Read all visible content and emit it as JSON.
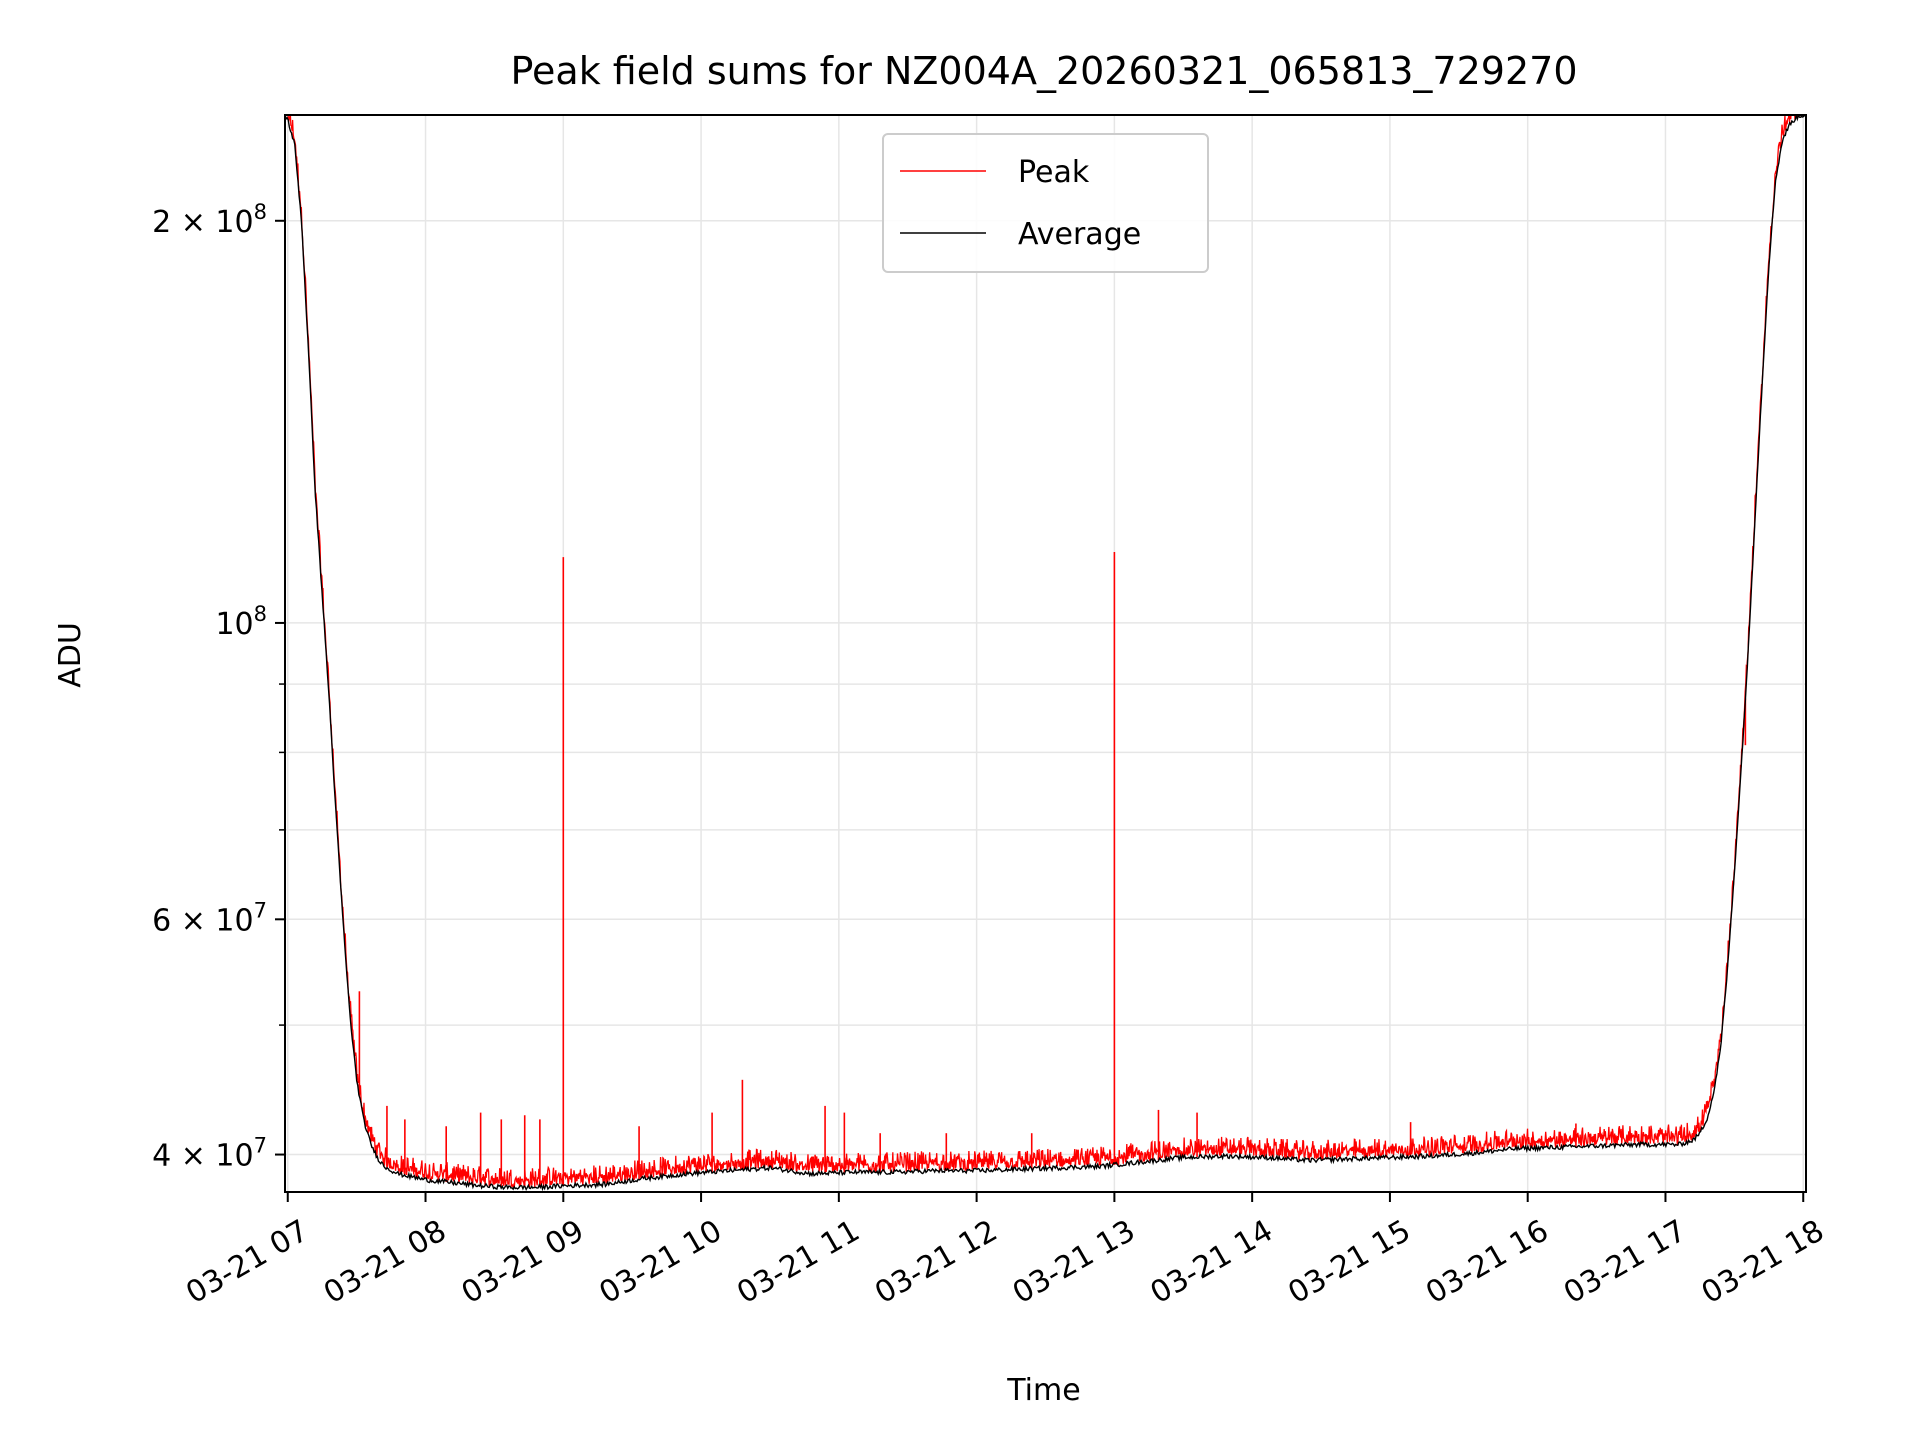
{
  "chart_data": {
    "type": "line",
    "title": "Peak field sums for NZ004A_20260321_065813_729270",
    "xlabel": "Time",
    "ylabel": "ADU",
    "yscale": "log",
    "xlim": [
      6.98,
      18.02
    ],
    "ylim": [
      37500000,
      240000000
    ],
    "grid": true,
    "legend_position": "top-center",
    "x_ticks": [
      {
        "value": 7,
        "label": "03-21 07"
      },
      {
        "value": 8,
        "label": "03-21 08"
      },
      {
        "value": 9,
        "label": "03-21 09"
      },
      {
        "value": 10,
        "label": "03-21 10"
      },
      {
        "value": 11,
        "label": "03-21 11"
      },
      {
        "value": 12,
        "label": "03-21 12"
      },
      {
        "value": 13,
        "label": "03-21 13"
      },
      {
        "value": 14,
        "label": "03-21 14"
      },
      {
        "value": 15,
        "label": "03-21 15"
      },
      {
        "value": 16,
        "label": "03-21 16"
      },
      {
        "value": 17,
        "label": "03-21 17"
      },
      {
        "value": 18,
        "label": "03-21 18"
      }
    ],
    "y_major_ticks": [
      {
        "value": 40000000,
        "mant": "4",
        "exp": "7"
      },
      {
        "value": 60000000,
        "mant": "6",
        "exp": "7"
      },
      {
        "value": 100000000,
        "mant": "",
        "exp": "8"
      },
      {
        "value": 200000000,
        "mant": "2",
        "exp": "8"
      }
    ],
    "y_minor_ticks": [
      50000000,
      70000000,
      80000000,
      90000000
    ],
    "series": [
      {
        "name": "Peak",
        "color": "#ff0000",
        "baseline_of": "Average",
        "noise_fraction": 0.035,
        "spikes": [
          {
            "x": 7.52,
            "y": 53000000
          },
          {
            "x": 7.72,
            "y": 43500000
          },
          {
            "x": 7.85,
            "y": 42500000
          },
          {
            "x": 8.15,
            "y": 42000000
          },
          {
            "x": 8.4,
            "y": 43000000
          },
          {
            "x": 8.55,
            "y": 42500000
          },
          {
            "x": 8.72,
            "y": 42800000
          },
          {
            "x": 8.83,
            "y": 42500000
          },
          {
            "x": 9.0,
            "y": 112000000
          },
          {
            "x": 9.55,
            "y": 42000000
          },
          {
            "x": 10.08,
            "y": 43000000
          },
          {
            "x": 10.3,
            "y": 45500000
          },
          {
            "x": 10.9,
            "y": 43500000
          },
          {
            "x": 11.04,
            "y": 43000000
          },
          {
            "x": 11.3,
            "y": 41500000
          },
          {
            "x": 11.78,
            "y": 41500000
          },
          {
            "x": 12.4,
            "y": 41500000
          },
          {
            "x": 13.0,
            "y": 113000000
          },
          {
            "x": 13.32,
            "y": 43200000
          },
          {
            "x": 13.6,
            "y": 43000000
          },
          {
            "x": 15.15,
            "y": 42300000
          },
          {
            "x": 16.35,
            "y": 42200000
          },
          {
            "x": 17.58,
            "y": 81000000
          }
        ]
      },
      {
        "name": "Average",
        "color": "#000000",
        "x": [
          6.98,
          7.0,
          7.05,
          7.1,
          7.15,
          7.2,
          7.25,
          7.3,
          7.35,
          7.4,
          7.45,
          7.5,
          7.55,
          7.6,
          7.65,
          7.7,
          7.8,
          7.9,
          8.0,
          8.2,
          8.4,
          8.6,
          8.8,
          9.0,
          9.3,
          9.6,
          9.9,
          10.2,
          10.5,
          10.8,
          11.1,
          11.4,
          11.7,
          12.0,
          12.3,
          12.6,
          12.9,
          13.2,
          13.5,
          13.8,
          14.1,
          14.4,
          14.7,
          15.0,
          15.3,
          15.6,
          15.9,
          16.2,
          16.5,
          16.8,
          17.0,
          17.1,
          17.2,
          17.25,
          17.3,
          17.35,
          17.4,
          17.45,
          17.5,
          17.55,
          17.6,
          17.65,
          17.7,
          17.75,
          17.8,
          17.85,
          17.9,
          17.95,
          18.0,
          18.02
        ],
        "y": [
          240000000,
          238000000,
          228000000,
          200000000,
          160000000,
          125000000,
          105000000,
          88000000,
          72000000,
          60000000,
          51000000,
          45500000,
          42500000,
          40800000,
          39800000,
          39200000,
          38700000,
          38500000,
          38300000,
          38100000,
          37900000,
          37800000,
          37800000,
          37900000,
          38000000,
          38400000,
          38700000,
          38900000,
          39100000,
          38700000,
          38800000,
          38800000,
          38900000,
          38900000,
          39000000,
          39100000,
          39200000,
          39500000,
          39800000,
          39900000,
          39800000,
          39600000,
          39700000,
          39800000,
          39900000,
          40100000,
          40400000,
          40500000,
          40600000,
          40700000,
          40700000,
          40700000,
          41000000,
          41500000,
          42500000,
          44500000,
          48000000,
          55000000,
          65000000,
          78000000,
          95000000,
          120000000,
          150000000,
          185000000,
          215000000,
          230000000,
          236000000,
          239000000,
          240000000,
          240000000
        ]
      }
    ]
  }
}
